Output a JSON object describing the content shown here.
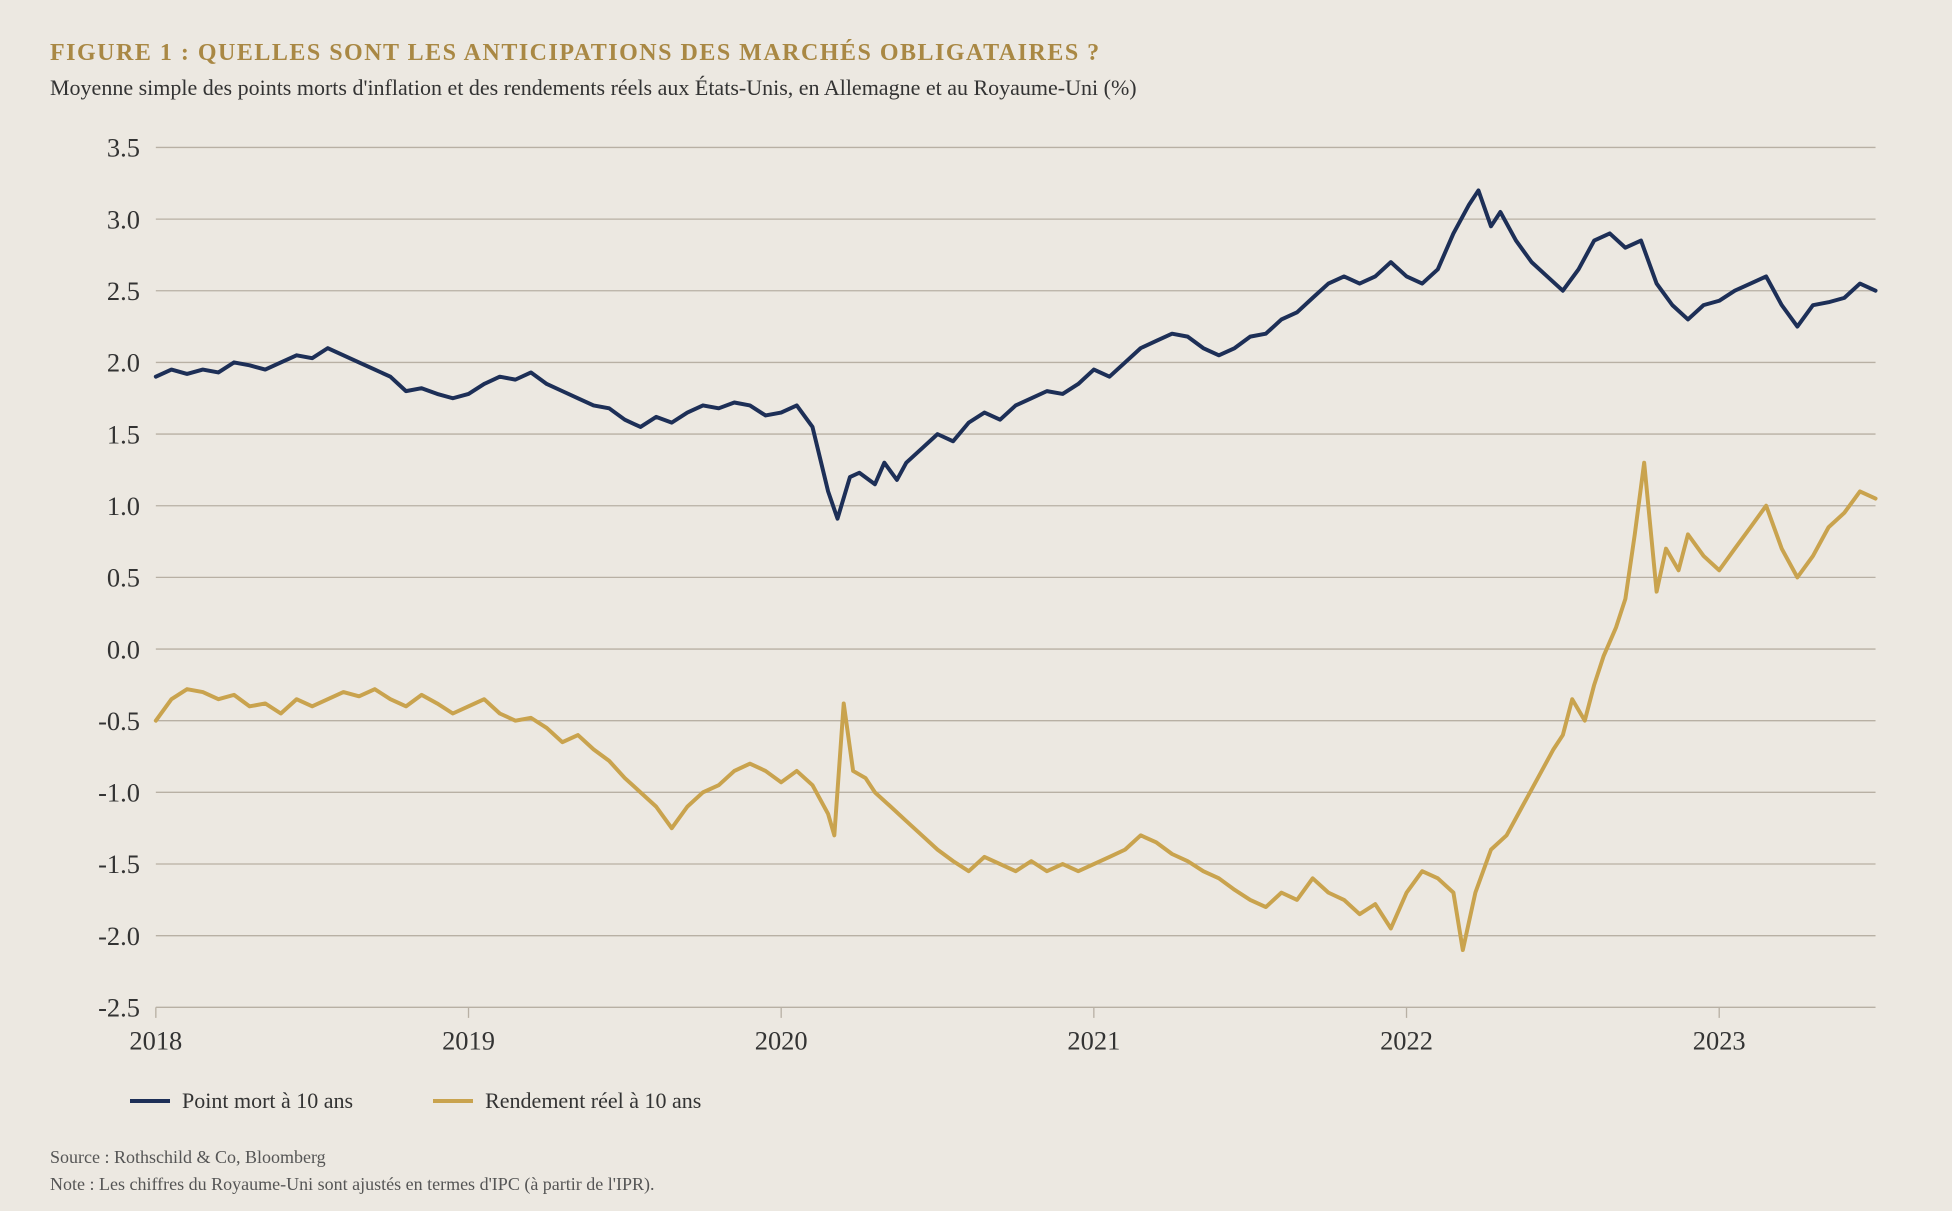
{
  "header": {
    "title": "FIGURE 1 : QUELLES SONT LES ANTICIPATIONS DES MARCHÉS OBLIGATAIRES ?",
    "subtitle": "Moyenne simple des points morts d'inflation et des rendements réels aux États-Unis, en Allemagne et au Royaume-Uni (%)"
  },
  "footer": {
    "source": "Source : Rothschild & Co, Bloomberg",
    "note": "Note : Les chiffres du Royaume-Uni sont ajustés en termes d'IPC (à partir de l'IPR)."
  },
  "legend": {
    "series1_label": "Point mort à 10 ans",
    "series2_label": "Rendement réel à 10 ans"
  },
  "chart": {
    "type": "line",
    "background_color": "#ece8e1",
    "grid_color": "#b8b0a4",
    "axis_color": "#333333",
    "tick_fontsize": 20,
    "x": {
      "min": 2018,
      "max": 2023.5,
      "ticks": [
        2018,
        2019,
        2020,
        2021,
        2022,
        2023
      ],
      "tick_labels": [
        "2018",
        "2019",
        "2020",
        "2021",
        "2022",
        "2023"
      ]
    },
    "y": {
      "min": -2.5,
      "max": 3.5,
      "ticks": [
        -2.5,
        -2.0,
        -1.5,
        -1.0,
        -0.5,
        0.0,
        0.5,
        1.0,
        1.5,
        2.0,
        2.5,
        3.0,
        3.5
      ],
      "tick_labels": [
        "-2.5",
        "-2.0",
        "-1.5",
        "-1.0",
        "-0.5",
        "0.0",
        "0.5",
        "1.0",
        "1.5",
        "2.0",
        "2.5",
        "3.0",
        "3.5"
      ]
    },
    "series": [
      {
        "name": "Point mort à 10 ans",
        "color": "#1d2f57",
        "line_width": 3,
        "data": [
          [
            2018.0,
            1.9
          ],
          [
            2018.05,
            1.95
          ],
          [
            2018.1,
            1.92
          ],
          [
            2018.15,
            1.95
          ],
          [
            2018.2,
            1.93
          ],
          [
            2018.25,
            2.0
          ],
          [
            2018.3,
            1.98
          ],
          [
            2018.35,
            1.95
          ],
          [
            2018.4,
            2.0
          ],
          [
            2018.45,
            2.05
          ],
          [
            2018.5,
            2.03
          ],
          [
            2018.55,
            2.1
          ],
          [
            2018.6,
            2.05
          ],
          [
            2018.65,
            2.0
          ],
          [
            2018.7,
            1.95
          ],
          [
            2018.75,
            1.9
          ],
          [
            2018.8,
            1.8
          ],
          [
            2018.85,
            1.82
          ],
          [
            2018.9,
            1.78
          ],
          [
            2018.95,
            1.75
          ],
          [
            2019.0,
            1.78
          ],
          [
            2019.05,
            1.85
          ],
          [
            2019.1,
            1.9
          ],
          [
            2019.15,
            1.88
          ],
          [
            2019.2,
            1.93
          ],
          [
            2019.25,
            1.85
          ],
          [
            2019.3,
            1.8
          ],
          [
            2019.35,
            1.75
          ],
          [
            2019.4,
            1.7
          ],
          [
            2019.45,
            1.68
          ],
          [
            2019.5,
            1.6
          ],
          [
            2019.55,
            1.55
          ],
          [
            2019.6,
            1.62
          ],
          [
            2019.65,
            1.58
          ],
          [
            2019.7,
            1.65
          ],
          [
            2019.75,
            1.7
          ],
          [
            2019.8,
            1.68
          ],
          [
            2019.85,
            1.72
          ],
          [
            2019.9,
            1.7
          ],
          [
            2019.95,
            1.63
          ],
          [
            2020.0,
            1.65
          ],
          [
            2020.05,
            1.7
          ],
          [
            2020.1,
            1.55
          ],
          [
            2020.15,
            1.1
          ],
          [
            2020.18,
            0.91
          ],
          [
            2020.22,
            1.2
          ],
          [
            2020.25,
            1.23
          ],
          [
            2020.3,
            1.15
          ],
          [
            2020.33,
            1.3
          ],
          [
            2020.37,
            1.18
          ],
          [
            2020.4,
            1.3
          ],
          [
            2020.45,
            1.4
          ],
          [
            2020.5,
            1.5
          ],
          [
            2020.55,
            1.45
          ],
          [
            2020.6,
            1.58
          ],
          [
            2020.65,
            1.65
          ],
          [
            2020.7,
            1.6
          ],
          [
            2020.75,
            1.7
          ],
          [
            2020.8,
            1.75
          ],
          [
            2020.85,
            1.8
          ],
          [
            2020.9,
            1.78
          ],
          [
            2020.95,
            1.85
          ],
          [
            2021.0,
            1.95
          ],
          [
            2021.05,
            1.9
          ],
          [
            2021.1,
            2.0
          ],
          [
            2021.15,
            2.1
          ],
          [
            2021.2,
            2.15
          ],
          [
            2021.25,
            2.2
          ],
          [
            2021.3,
            2.18
          ],
          [
            2021.35,
            2.1
          ],
          [
            2021.4,
            2.05
          ],
          [
            2021.45,
            2.1
          ],
          [
            2021.5,
            2.18
          ],
          [
            2021.55,
            2.2
          ],
          [
            2021.6,
            2.3
          ],
          [
            2021.65,
            2.35
          ],
          [
            2021.7,
            2.45
          ],
          [
            2021.75,
            2.55
          ],
          [
            2021.8,
            2.6
          ],
          [
            2021.85,
            2.55
          ],
          [
            2021.9,
            2.6
          ],
          [
            2021.95,
            2.7
          ],
          [
            2022.0,
            2.6
          ],
          [
            2022.05,
            2.55
          ],
          [
            2022.1,
            2.65
          ],
          [
            2022.15,
            2.9
          ],
          [
            2022.2,
            3.1
          ],
          [
            2022.23,
            3.2
          ],
          [
            2022.27,
            2.95
          ],
          [
            2022.3,
            3.05
          ],
          [
            2022.35,
            2.85
          ],
          [
            2022.4,
            2.7
          ],
          [
            2022.45,
            2.6
          ],
          [
            2022.5,
            2.5
          ],
          [
            2022.55,
            2.65
          ],
          [
            2022.6,
            2.85
          ],
          [
            2022.65,
            2.9
          ],
          [
            2022.7,
            2.8
          ],
          [
            2022.75,
            2.85
          ],
          [
            2022.8,
            2.55
          ],
          [
            2022.85,
            2.4
          ],
          [
            2022.9,
            2.3
          ],
          [
            2022.95,
            2.4
          ],
          [
            2023.0,
            2.43
          ],
          [
            2023.05,
            2.5
          ],
          [
            2023.1,
            2.55
          ],
          [
            2023.15,
            2.6
          ],
          [
            2023.2,
            2.4
          ],
          [
            2023.25,
            2.25
          ],
          [
            2023.3,
            2.4
          ],
          [
            2023.35,
            2.42
          ],
          [
            2023.4,
            2.45
          ],
          [
            2023.45,
            2.55
          ],
          [
            2023.5,
            2.5
          ]
        ]
      },
      {
        "name": "Rendement réel à 10 ans",
        "color": "#c9a34e",
        "line_width": 3,
        "data": [
          [
            2018.0,
            -0.5
          ],
          [
            2018.05,
            -0.35
          ],
          [
            2018.1,
            -0.28
          ],
          [
            2018.15,
            -0.3
          ],
          [
            2018.2,
            -0.35
          ],
          [
            2018.25,
            -0.32
          ],
          [
            2018.3,
            -0.4
          ],
          [
            2018.35,
            -0.38
          ],
          [
            2018.4,
            -0.45
          ],
          [
            2018.45,
            -0.35
          ],
          [
            2018.5,
            -0.4
          ],
          [
            2018.55,
            -0.35
          ],
          [
            2018.6,
            -0.3
          ],
          [
            2018.65,
            -0.33
          ],
          [
            2018.7,
            -0.28
          ],
          [
            2018.75,
            -0.35
          ],
          [
            2018.8,
            -0.4
          ],
          [
            2018.85,
            -0.32
          ],
          [
            2018.9,
            -0.38
          ],
          [
            2018.95,
            -0.45
          ],
          [
            2019.0,
            -0.4
          ],
          [
            2019.05,
            -0.35
          ],
          [
            2019.1,
            -0.45
          ],
          [
            2019.15,
            -0.5
          ],
          [
            2019.2,
            -0.48
          ],
          [
            2019.25,
            -0.55
          ],
          [
            2019.3,
            -0.65
          ],
          [
            2019.35,
            -0.6
          ],
          [
            2019.4,
            -0.7
          ],
          [
            2019.45,
            -0.78
          ],
          [
            2019.5,
            -0.9
          ],
          [
            2019.55,
            -1.0
          ],
          [
            2019.6,
            -1.1
          ],
          [
            2019.65,
            -1.25
          ],
          [
            2019.7,
            -1.1
          ],
          [
            2019.75,
            -1.0
          ],
          [
            2019.8,
            -0.95
          ],
          [
            2019.85,
            -0.85
          ],
          [
            2019.9,
            -0.8
          ],
          [
            2019.95,
            -0.85
          ],
          [
            2020.0,
            -0.93
          ],
          [
            2020.05,
            -0.85
          ],
          [
            2020.1,
            -0.95
          ],
          [
            2020.15,
            -1.15
          ],
          [
            2020.17,
            -1.3
          ],
          [
            2020.2,
            -0.38
          ],
          [
            2020.23,
            -0.85
          ],
          [
            2020.27,
            -0.9
          ],
          [
            2020.3,
            -1.0
          ],
          [
            2020.35,
            -1.1
          ],
          [
            2020.4,
            -1.2
          ],
          [
            2020.45,
            -1.3
          ],
          [
            2020.5,
            -1.4
          ],
          [
            2020.55,
            -1.48
          ],
          [
            2020.6,
            -1.55
          ],
          [
            2020.65,
            -1.45
          ],
          [
            2020.7,
            -1.5
          ],
          [
            2020.75,
            -1.55
          ],
          [
            2020.8,
            -1.48
          ],
          [
            2020.85,
            -1.55
          ],
          [
            2020.9,
            -1.5
          ],
          [
            2020.95,
            -1.55
          ],
          [
            2021.0,
            -1.5
          ],
          [
            2021.05,
            -1.45
          ],
          [
            2021.1,
            -1.4
          ],
          [
            2021.15,
            -1.3
          ],
          [
            2021.2,
            -1.35
          ],
          [
            2021.25,
            -1.43
          ],
          [
            2021.3,
            -1.48
          ],
          [
            2021.35,
            -1.55
          ],
          [
            2021.4,
            -1.6
          ],
          [
            2021.45,
            -1.68
          ],
          [
            2021.5,
            -1.75
          ],
          [
            2021.55,
            -1.8
          ],
          [
            2021.6,
            -1.7
          ],
          [
            2021.65,
            -1.75
          ],
          [
            2021.7,
            -1.6
          ],
          [
            2021.75,
            -1.7
          ],
          [
            2021.8,
            -1.75
          ],
          [
            2021.85,
            -1.85
          ],
          [
            2021.9,
            -1.78
          ],
          [
            2021.95,
            -1.95
          ],
          [
            2022.0,
            -1.7
          ],
          [
            2022.05,
            -1.55
          ],
          [
            2022.1,
            -1.6
          ],
          [
            2022.15,
            -1.7
          ],
          [
            2022.18,
            -2.1
          ],
          [
            2022.22,
            -1.7
          ],
          [
            2022.27,
            -1.4
          ],
          [
            2022.32,
            -1.3
          ],
          [
            2022.37,
            -1.1
          ],
          [
            2022.42,
            -0.9
          ],
          [
            2022.47,
            -0.7
          ],
          [
            2022.5,
            -0.6
          ],
          [
            2022.53,
            -0.35
          ],
          [
            2022.57,
            -0.5
          ],
          [
            2022.6,
            -0.25
          ],
          [
            2022.63,
            -0.05
          ],
          [
            2022.67,
            0.15
          ],
          [
            2022.7,
            0.35
          ],
          [
            2022.73,
            0.8
          ],
          [
            2022.76,
            1.3
          ],
          [
            2022.8,
            0.4
          ],
          [
            2022.83,
            0.7
          ],
          [
            2022.87,
            0.55
          ],
          [
            2022.9,
            0.8
          ],
          [
            2022.95,
            0.65
          ],
          [
            2023.0,
            0.55
          ],
          [
            2023.05,
            0.7
          ],
          [
            2023.1,
            0.85
          ],
          [
            2023.15,
            1.0
          ],
          [
            2023.2,
            0.7
          ],
          [
            2023.25,
            0.5
          ],
          [
            2023.3,
            0.65
          ],
          [
            2023.35,
            0.85
          ],
          [
            2023.4,
            0.95
          ],
          [
            2023.45,
            1.1
          ],
          [
            2023.5,
            1.05
          ]
        ]
      }
    ]
  }
}
